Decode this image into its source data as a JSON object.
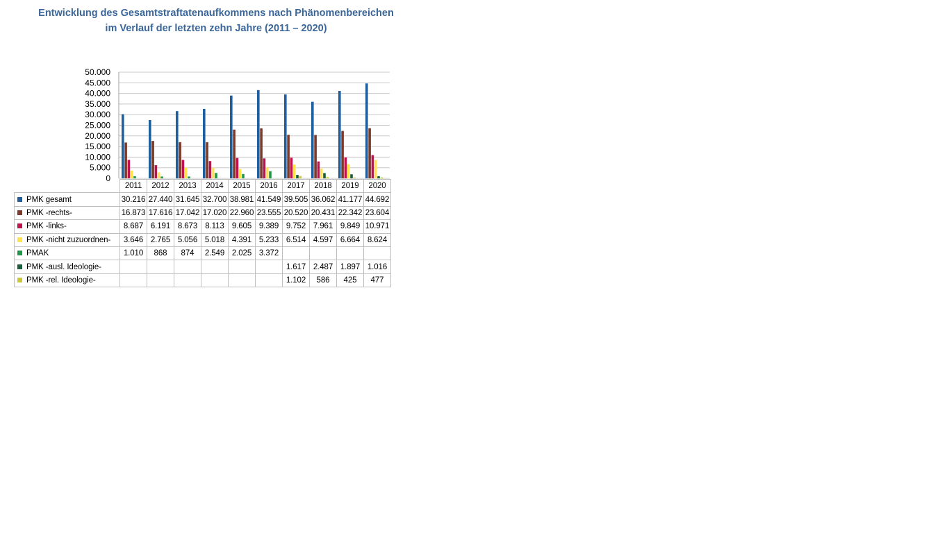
{
  "title_line1": "Entwicklung des Gesamtstraftatenaufkommens nach Phänomenbereichen",
  "title_line2": "im Verlauf der letzten zehn Jahre (2011 – 2020)",
  "chart_data": {
    "type": "bar",
    "categories": [
      "2011",
      "2012",
      "2013",
      "2014",
      "2015",
      "2016",
      "2017",
      "2018",
      "2019",
      "2020"
    ],
    "ylim": [
      0,
      50000
    ],
    "yticks": [
      "0",
      "5.000",
      "10.000",
      "15.000",
      "20.000",
      "25.000",
      "30.000",
      "35.000",
      "40.000",
      "45.000",
      "50.000"
    ],
    "grid": true,
    "legend": "data-table",
    "series": [
      {
        "name": "PMK gesamt",
        "color": "#1F5F9E",
        "values": [
          30216,
          27440,
          31645,
          32700,
          38981,
          41549,
          39505,
          36062,
          41177,
          44692
        ],
        "labels": [
          "30.216",
          "27.440",
          "31.645",
          "32.700",
          "38.981",
          "41.549",
          "39.505",
          "36.062",
          "41.177",
          "44.692"
        ]
      },
      {
        "name": "PMK -rechts-",
        "color": "#7B3A2A",
        "values": [
          16873,
          17616,
          17042,
          17020,
          22960,
          23555,
          20520,
          20431,
          22342,
          23604
        ],
        "labels": [
          "16.873",
          "17.616",
          "17.042",
          "17.020",
          "22.960",
          "23.555",
          "20.520",
          "20.431",
          "22.342",
          "23.604"
        ]
      },
      {
        "name": "PMK -links-",
        "color": "#C0114F",
        "values": [
          8687,
          6191,
          8673,
          8113,
          9605,
          9389,
          9752,
          7961,
          9849,
          10971
        ],
        "labels": [
          "8.687",
          "6.191",
          "8.673",
          "8.113",
          "9.605",
          "9.389",
          "9.752",
          "7.961",
          "9.849",
          "10.971"
        ]
      },
      {
        "name": "PMK -nicht zuzuordnen-",
        "color": "#FFE44D",
        "values": [
          3646,
          2765,
          5056,
          5018,
          4391,
          5233,
          6514,
          4597,
          6664,
          8624
        ],
        "labels": [
          "3.646",
          "2.765",
          "5.056",
          "5.018",
          "4.391",
          "5.233",
          "6.514",
          "4.597",
          "6.664",
          "8.624"
        ]
      },
      {
        "name": "PMAK",
        "color": "#22994A",
        "values": [
          1010,
          868,
          874,
          2549,
          2025,
          3372,
          null,
          null,
          null,
          null
        ],
        "labels": [
          "1.010",
          "868",
          "874",
          "2.549",
          "2.025",
          "3.372",
          "",
          "",
          "",
          ""
        ]
      },
      {
        "name": "PMK -ausl. Ideologie-",
        "color": "#185E3A",
        "values": [
          null,
          null,
          null,
          null,
          null,
          null,
          1617,
          2487,
          1897,
          1016
        ],
        "labels": [
          "",
          "",
          "",
          "",
          "",
          "",
          "1.617",
          "2.487",
          "1.897",
          "1.016"
        ]
      },
      {
        "name": "PMK -rel. Ideologie-",
        "color": "#C8C83A",
        "values": [
          null,
          null,
          null,
          null,
          null,
          null,
          1102,
          586,
          425,
          477
        ],
        "labels": [
          "",
          "",
          "",
          "",
          "",
          "",
          "1.102",
          "586",
          "425",
          "477"
        ]
      }
    ]
  }
}
